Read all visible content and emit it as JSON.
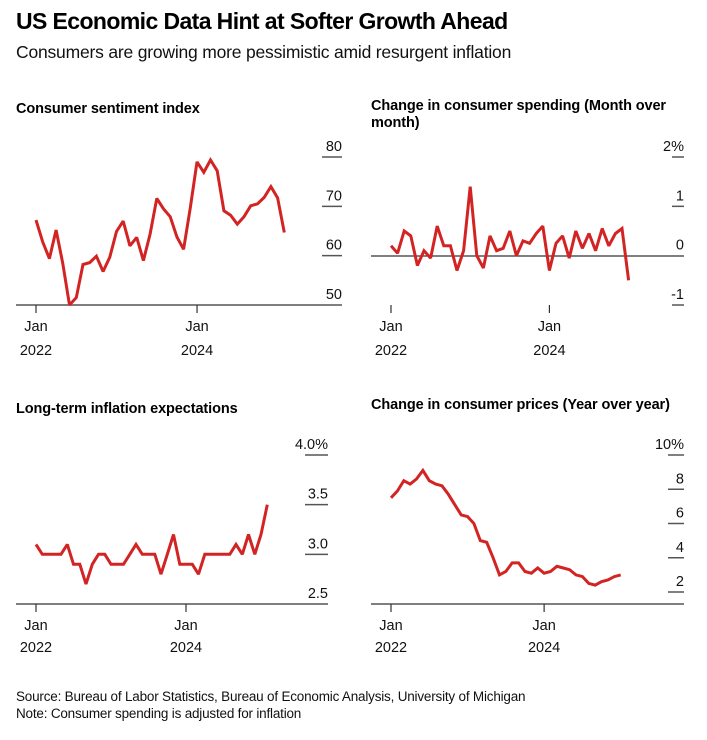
{
  "header": {
    "title": "US Economic Data Hint at Softer Growth Ahead",
    "subtitle": "Consumers are growing more pessimistic amid resurgent inflation"
  },
  "footer": {
    "source": "Source: Bureau of Labor Statistics, Bureau of Economic Analysis, University of Michigan",
    "note": "Note: Consumer spending is adjusted for inflation"
  },
  "colors": {
    "line": "#d32424",
    "axis": "#666666",
    "baseline": "#333333"
  },
  "chart_data": [
    {
      "id": "sentiment",
      "type": "line",
      "title": "Consumer sentiment index",
      "x_start": "Jan 2022",
      "frequency": "monthly",
      "x_ticks": [
        {
          "index": 0,
          "label1": "Jan",
          "label2": "2022"
        },
        {
          "index": 24,
          "label1": "Jan",
          "label2": "2024"
        }
      ],
      "y_ticks": [
        {
          "value": 80,
          "label": "80"
        },
        {
          "value": 70,
          "label": "70"
        },
        {
          "value": 60,
          "label": "60"
        },
        {
          "value": 50,
          "label": "50"
        }
      ],
      "ylim": [
        50,
        80
      ],
      "baseline": 50,
      "values": [
        67.2,
        62.8,
        59.4,
        65.2,
        58.4,
        50.0,
        51.5,
        58.2,
        58.6,
        59.9,
        56.8,
        59.7,
        64.9,
        67.0,
        62.0,
        63.7,
        59.0,
        64.4,
        71.6,
        69.5,
        67.9,
        63.8,
        61.3,
        69.7,
        79.0,
        76.9,
        79.4,
        77.2,
        69.1,
        68.2,
        66.4,
        67.9,
        70.1,
        70.5,
        71.8,
        74.0,
        71.7,
        64.7
      ]
    },
    {
      "id": "spending",
      "type": "line",
      "title": "Change in consumer spending (Month over month)",
      "x_start": "Jan 2022",
      "frequency": "monthly",
      "x_ticks": [
        {
          "index": 0,
          "label1": "Jan",
          "label2": "2022"
        },
        {
          "index": 24,
          "label1": "Jan",
          "label2": "2024"
        }
      ],
      "y_ticks": [
        {
          "value": 2,
          "label": "2%"
        },
        {
          "value": 1,
          "label": "1"
        },
        {
          "value": 0,
          "label": "0"
        },
        {
          "value": -1,
          "label": "-1"
        }
      ],
      "ylim": [
        -1,
        2
      ],
      "baseline": 0,
      "unit": "%",
      "values": [
        0.2,
        0.05,
        0.5,
        0.4,
        -0.2,
        0.1,
        -0.05,
        0.6,
        0.2,
        0.2,
        -0.3,
        0.1,
        1.4,
        0.0,
        -0.25,
        0.4,
        0.1,
        0.15,
        0.5,
        0.0,
        0.3,
        0.25,
        0.45,
        0.6,
        -0.3,
        0.25,
        0.4,
        -0.05,
        0.5,
        0.15,
        0.45,
        0.1,
        0.55,
        0.2,
        0.45,
        0.55,
        -0.5
      ]
    },
    {
      "id": "expectations",
      "type": "line",
      "title": "Long-term inflation expectations",
      "x_start": "Jan 2022",
      "frequency": "monthly",
      "x_ticks": [
        {
          "index": 0,
          "label1": "Jan",
          "label2": "2022"
        },
        {
          "index": 24,
          "label1": "Jan",
          "label2": "2024"
        }
      ],
      "y_ticks": [
        {
          "value": 4.0,
          "label": "4.0%"
        },
        {
          "value": 3.5,
          "label": "3.5"
        },
        {
          "value": 3.0,
          "label": "3.0"
        },
        {
          "value": 2.5,
          "label": "2.5"
        }
      ],
      "ylim": [
        2.5,
        4.0
      ],
      "baseline": 2.5,
      "unit": "%",
      "values": [
        3.1,
        3.0,
        3.0,
        3.0,
        3.0,
        3.1,
        2.9,
        2.9,
        2.7,
        2.9,
        3.0,
        3.0,
        2.9,
        2.9,
        2.9,
        3.0,
        3.1,
        3.0,
        3.0,
        3.0,
        2.8,
        3.0,
        3.2,
        2.9,
        2.9,
        2.9,
        2.8,
        3.0,
        3.0,
        3.0,
        3.0,
        3.0,
        3.1,
        3.0,
        3.2,
        3.0,
        3.2,
        3.5
      ]
    },
    {
      "id": "prices",
      "type": "line",
      "title": "Change in consumer prices (Year over year)",
      "x_start": "Jan 2022",
      "frequency": "monthly",
      "x_ticks": [
        {
          "index": 0,
          "label1": "Jan",
          "label2": "2022"
        },
        {
          "index": 24,
          "label1": "Jan",
          "label2": "2024"
        }
      ],
      "y_ticks": [
        {
          "value": 10,
          "label": "10%"
        },
        {
          "value": 8,
          "label": "8"
        },
        {
          "value": 6,
          "label": "6"
        },
        {
          "value": 4,
          "label": "4"
        },
        {
          "value": 2,
          "label": "2"
        }
      ],
      "ylim": [
        1.4,
        10
      ],
      "baseline": 1.4,
      "unit": "%",
      "values": [
        7.5,
        7.9,
        8.5,
        8.3,
        8.6,
        9.1,
        8.5,
        8.3,
        8.2,
        7.7,
        7.1,
        6.5,
        6.4,
        6.0,
        5.0,
        4.9,
        4.0,
        3.0,
        3.2,
        3.7,
        3.7,
        3.2,
        3.1,
        3.4,
        3.1,
        3.2,
        3.5,
        3.4,
        3.3,
        3.0,
        2.9,
        2.5,
        2.4,
        2.6,
        2.7,
        2.9,
        3.0
      ]
    }
  ]
}
